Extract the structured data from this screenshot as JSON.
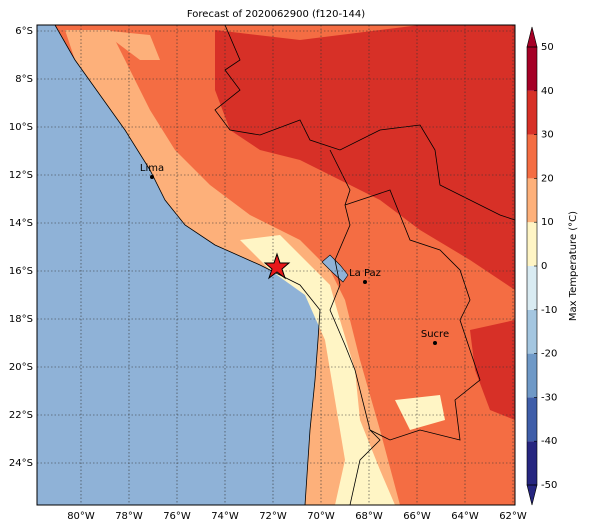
{
  "map": {
    "title": "Forecast of 2020062900 (f120-144)",
    "lat_labels": [
      "6°S",
      "8°S",
      "10°S",
      "12°S",
      "14°S",
      "16°S",
      "18°S",
      "20°S",
      "22°S",
      "24°S"
    ],
    "lon_labels": [
      "80°W",
      "78°W",
      "76°W",
      "74°W",
      "72°W",
      "70°W",
      "68°W",
      "66°W",
      "64°W",
      "62°W"
    ],
    "cities": [
      {
        "name": "Lima"
      },
      {
        "name": "La Paz"
      },
      {
        "name": "Sucre"
      }
    ],
    "colorbar": {
      "label": "Max Temperature (°C)",
      "ticks": [
        -50,
        -40,
        -30,
        -20,
        -10,
        0,
        10,
        20,
        30,
        40,
        50
      ],
      "colors": [
        "#262680",
        "#3f5ea9",
        "#6f99c7",
        "#a4c6e0",
        "#d9ebf2",
        "#fff5c5",
        "#fdb07a",
        "#f46d43",
        "#d73027",
        "#a50026"
      ]
    }
  }
}
